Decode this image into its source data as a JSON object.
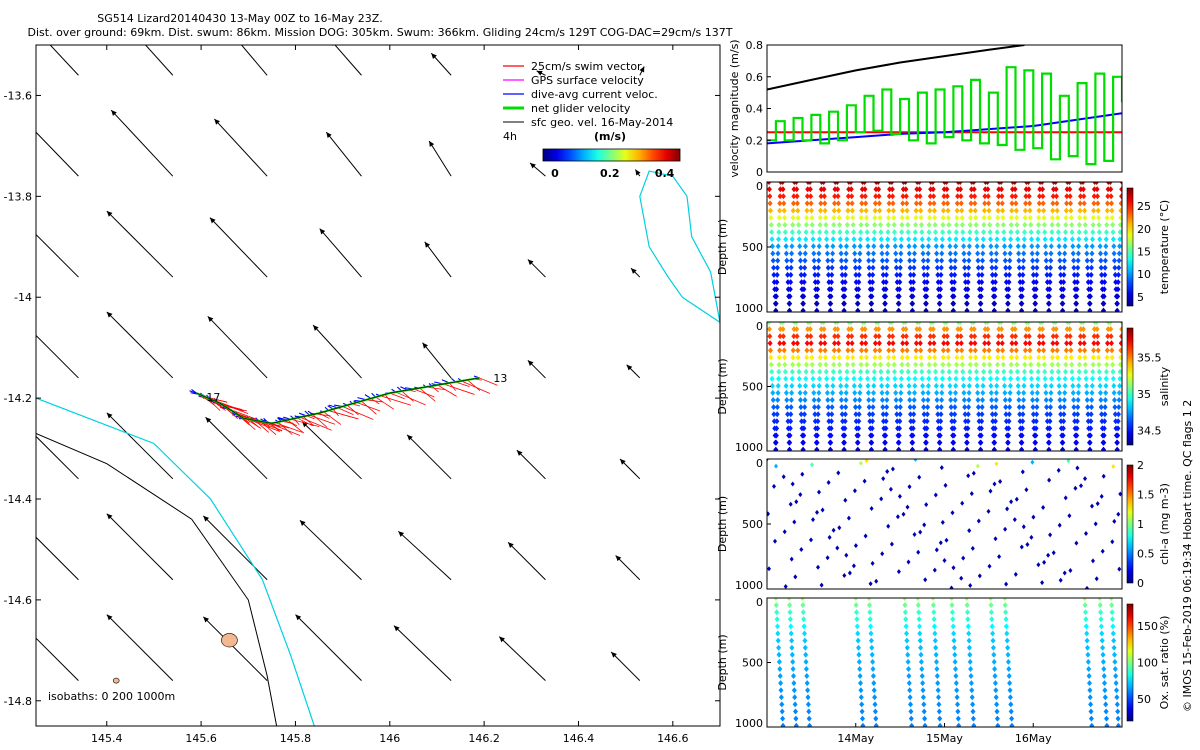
{
  "header": {
    "line1": "SG514 Lizard20140430 13-May 00Z to 16-May 23Z.",
    "line2": "Dist. over ground: 69km. Dist. swum: 86km. Mission DOG: 305km. Swum: 366km. Gliding 24cm/s 129T COG-DAC=29cm/s 137T"
  },
  "credit": "© IMOS 15-Feb-2019 06:19:34 Hobart time. QC flags 1  2",
  "chart_data": [
    {
      "type": "scatter",
      "panel": "glider track map with surface geostrophic velocity vectors",
      "xlim": [
        145.25,
        146.7
      ],
      "ylim": [
        -14.85,
        -13.5
      ],
      "x_ticks": [
        "145.4",
        "145.6",
        "145.8",
        "146",
        "146.2",
        "146.4",
        "146.6"
      ],
      "y_ticks": [
        "-13.6",
        "-13.8",
        "-14",
        "-14.2",
        "-14.4",
        "-14.6",
        "-14.8"
      ],
      "legend": {
        "position": "top-right",
        "items": [
          {
            "label": "25cm/s swim vector",
            "color": "#ff0000"
          },
          {
            "label": "GPS surface velocity",
            "color": "#ff00ff"
          },
          {
            "label": "dive-avg current veloc.",
            "color": "#0000ff"
          },
          {
            "label": "net glider velocity",
            "color": "#00dd00"
          },
          {
            "label": "sfc geo. vel. 16-May-2014",
            "color": "#000000"
          }
        ]
      },
      "colorbar": {
        "title": "(m/s)",
        "ticks": [
          "0",
          "0.2",
          "0.4"
        ],
        "range": [
          0,
          0.5
        ]
      },
      "annotations": {
        "left_label": "4h",
        "track_start": "13",
        "track_end": "17",
        "isobaths": "isobaths: 0   200  1000m"
      },
      "track": [
        [
          146.19,
          -14.16
        ],
        [
          146.0,
          -14.19
        ],
        [
          145.85,
          -14.23
        ],
        [
          145.75,
          -14.25
        ],
        [
          145.69,
          -14.24
        ],
        [
          145.64,
          -14.21
        ],
        [
          145.59,
          -14.19
        ]
      ],
      "current_vector": {
        "speed_ms": 0.29,
        "direction_deg": 137
      },
      "geo_vectors": {
        "lons": [
          145.34,
          145.54,
          145.74,
          145.94,
          146.13,
          146.33,
          146.53
        ],
        "lats": [
          -13.56,
          -13.76,
          -13.96,
          -14.16,
          -14.36,
          -14.56,
          -14.76
        ],
        "u": [
          [
            -0.28,
            -0.27,
            -0.22,
            -0.14,
            -0.09,
            -0.04,
            0.02
          ],
          [
            -0.29,
            -0.28,
            -0.24,
            -0.16,
            -0.1,
            -0.07,
            -0.02
          ],
          [
            -0.3,
            -0.3,
            -0.26,
            -0.19,
            -0.12,
            -0.08,
            -0.04
          ],
          [
            -0.3,
            -0.3,
            -0.27,
            -0.22,
            -0.13,
            -0.08,
            -0.06
          ],
          [
            -0.3,
            -0.3,
            -0.28,
            -0.27,
            -0.2,
            -0.13,
            -0.09
          ],
          [
            -0.3,
            -0.3,
            -0.29,
            -0.28,
            -0.24,
            -0.17,
            -0.11
          ],
          [
            -0.3,
            -0.3,
            -0.29,
            -0.3,
            -0.26,
            -0.21,
            -0.13
          ]
        ],
        "v": [
          [
            0.3,
            0.3,
            0.26,
            0.16,
            0.1,
            0.02,
            0.04
          ],
          [
            0.3,
            0.3,
            0.26,
            0.2,
            0.16,
            0.06,
            0.03
          ],
          [
            0.3,
            0.3,
            0.27,
            0.22,
            0.16,
            0.08,
            0.04
          ],
          [
            0.3,
            0.3,
            0.28,
            0.24,
            0.16,
            0.08,
            0.06
          ],
          [
            0.3,
            0.3,
            0.28,
            0.26,
            0.2,
            0.13,
            0.09
          ],
          [
            0.3,
            0.3,
            0.29,
            0.27,
            0.22,
            0.17,
            0.11
          ],
          [
            0.3,
            0.3,
            0.29,
            0.3,
            0.25,
            0.2,
            0.13
          ]
        ]
      },
      "cyan_isobath": [
        [
          145.25,
          -14.2
        ],
        [
          145.5,
          -14.29
        ],
        [
          145.62,
          -14.4
        ],
        [
          145.73,
          -14.56
        ],
        [
          145.79,
          -14.71
        ],
        [
          145.84,
          -14.85
        ]
      ],
      "black_isobath": [
        [
          145.25,
          -14.27
        ],
        [
          145.4,
          -14.33
        ],
        [
          145.58,
          -14.44
        ],
        [
          145.7,
          -14.6
        ],
        [
          145.74,
          -14.75
        ],
        [
          145.76,
          -14.85
        ]
      ],
      "cyan_loop": [
        [
          146.62,
          -14.0
        ],
        [
          146.7,
          -14.05
        ],
        [
          146.68,
          -13.95
        ],
        [
          146.64,
          -13.88
        ],
        [
          146.63,
          -13.8
        ],
        [
          146.6,
          -13.76
        ],
        [
          146.55,
          -13.75
        ],
        [
          146.53,
          -13.8
        ],
        [
          146.55,
          -13.9
        ],
        [
          146.59,
          -13.96
        ],
        [
          146.62,
          -14.0
        ]
      ],
      "islands": [
        [
          145.66,
          -14.68
        ],
        [
          145.42,
          -14.76
        ]
      ]
    },
    {
      "type": "line",
      "panel": "velocity magnitude",
      "ylabel": "velocity magnitude (m/s)",
      "ylim": [
        0,
        0.8
      ],
      "y_ticks": [
        "0",
        "0.2",
        "0.4",
        "0.6",
        "0.8"
      ],
      "xlim_days": [
        13,
        17
      ],
      "series": [
        {
          "color": "#000000",
          "t": [
            13.0,
            13.5,
            14.0,
            14.5,
            15.0,
            15.5,
            15.9
          ],
          "values": [
            0.52,
            0.58,
            0.64,
            0.69,
            0.73,
            0.77,
            0.8
          ]
        },
        {
          "color": "#ff0000",
          "t": [
            13.0,
            17.0
          ],
          "values": [
            0.25,
            0.25
          ]
        },
        {
          "color": "#0000ff",
          "t": [
            13.0,
            13.5,
            14.0,
            14.5,
            15.0,
            15.5,
            16.0,
            16.5,
            17.0
          ],
          "values": [
            0.18,
            0.2,
            0.22,
            0.24,
            0.25,
            0.27,
            0.29,
            0.33,
            0.37
          ]
        },
        {
          "color": "#00dd00",
          "t": [
            13.0,
            13.1,
            13.2,
            13.3,
            13.4,
            13.5,
            13.6,
            13.7,
            13.8,
            13.9,
            14.0,
            14.1,
            14.2,
            14.3,
            14.4,
            14.5,
            14.6,
            14.7,
            14.8,
            14.9,
            15.0,
            15.1,
            15.2,
            15.3,
            15.4,
            15.5,
            15.6,
            15.7,
            15.8,
            15.9,
            16.0,
            16.1,
            16.2,
            16.3,
            16.4,
            16.5,
            16.6,
            16.7,
            16.8,
            16.9,
            17.0
          ],
          "values": [
            0.2,
            0.32,
            0.2,
            0.34,
            0.2,
            0.36,
            0.18,
            0.38,
            0.2,
            0.42,
            0.25,
            0.48,
            0.26,
            0.52,
            0.24,
            0.46,
            0.2,
            0.5,
            0.18,
            0.52,
            0.22,
            0.54,
            0.2,
            0.58,
            0.18,
            0.5,
            0.17,
            0.66,
            0.14,
            0.64,
            0.15,
            0.62,
            0.08,
            0.48,
            0.1,
            0.56,
            0.05,
            0.62,
            0.07,
            0.6,
            0.44
          ]
        }
      ]
    },
    {
      "type": "heatmap",
      "panel": "temperature",
      "ylabel": "Depth (m)",
      "colorbar_label": "temperature (°C)",
      "clim": [
        3,
        29
      ],
      "colorbar_ticks": [
        "5",
        "10",
        "15",
        "20",
        "25"
      ],
      "ylim": [
        1000,
        0
      ],
      "y_ticks": [
        "0",
        "500",
        "1000"
      ],
      "dives": 26,
      "profile_depth_m": [
        0,
        100,
        200,
        300,
        500,
        700,
        1000
      ],
      "profile_values": [
        27.5,
        25.5,
        22.0,
        17.5,
        10.0,
        7.0,
        4.0
      ]
    },
    {
      "type": "heatmap",
      "panel": "salinity",
      "ylabel": "Depth (m)",
      "colorbar_label": "salinity",
      "clim": [
        34.3,
        35.9
      ],
      "colorbar_ticks": [
        "34.5",
        "35",
        "35.5"
      ],
      "ylim": [
        1000,
        0
      ],
      "y_ticks": [
        "0",
        "500",
        "1000"
      ],
      "dives": 26,
      "profile_depth_m": [
        0,
        50,
        150,
        250,
        400,
        700,
        1000
      ],
      "profile_values": [
        35.1,
        35.45,
        35.75,
        35.4,
        34.95,
        34.6,
        34.45
      ]
    },
    {
      "type": "scatter",
      "panel": "chl-a",
      "ylabel": "Depth (m)",
      "colorbar_label": "chl-a (mg m-3)",
      "clim": [
        0,
        2
      ],
      "colorbar_ticks": [
        "0",
        "0.5",
        "1",
        "1.5",
        "2"
      ],
      "ylim": [
        1000,
        0
      ],
      "y_ticks": [
        "0",
        "500",
        "1000"
      ],
      "dives": 26,
      "surface_values": [
        0.1,
        0.3,
        1.0,
        0.8,
        1.3,
        0.6,
        0.9,
        1.1
      ]
    },
    {
      "type": "scatter",
      "panel": "oxygen saturation",
      "ylabel": "Depth (m)",
      "colorbar_label": "Ox. sat. ratio (%)",
      "clim": [
        20,
        180
      ],
      "colorbar_ticks": [
        "50",
        "100",
        "150"
      ],
      "ylim": [
        1000,
        0
      ],
      "y_ticks": [
        "0",
        "500",
        "1000"
      ],
      "x_ticks": [
        "14May",
        "15May",
        "16May"
      ],
      "xlim_days": [
        13,
        17
      ],
      "dive_times": [
        13.1,
        13.25,
        13.4,
        14.0,
        14.15,
        14.55,
        14.7,
        14.87,
        15.08,
        15.25,
        15.52,
        15.68,
        16.58,
        16.75,
        16.88
      ],
      "profile_depth_m": [
        0,
        100,
        300,
        600,
        1000
      ],
      "profile_values": [
        105,
        90,
        72,
        65,
        60
      ]
    }
  ]
}
